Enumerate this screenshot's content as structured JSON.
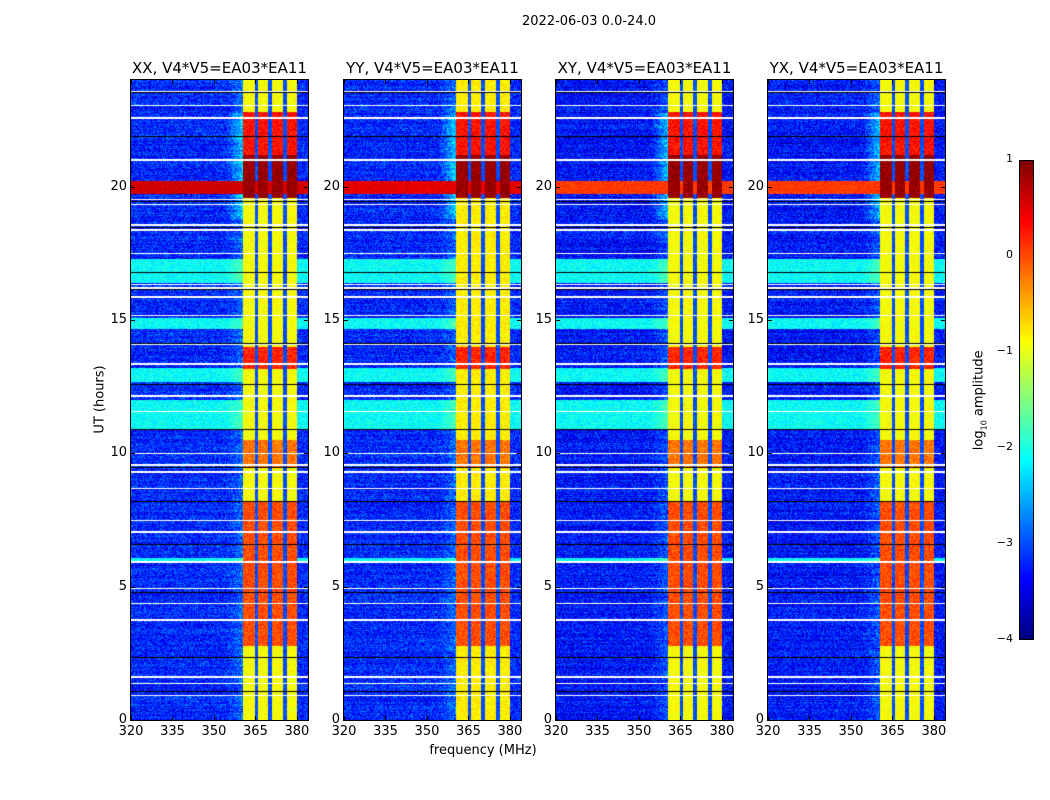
{
  "chart_data": {
    "type": "heatmap",
    "title": "2022-06-03 0.0-24.0",
    "xlabel": "frequency (MHz)",
    "ylabel": "UT (hours)",
    "xlim": [
      320,
      384
    ],
    "ylim": [
      0,
      24
    ],
    "xticks": [
      320,
      335,
      350,
      365,
      380
    ],
    "yticks": [
      0,
      5,
      10,
      15,
      20
    ],
    "colormap": "jet",
    "colorbar": {
      "label_prefix": "log",
      "label_sub": "10",
      "label_suffix": " amplitude",
      "range": [
        -4,
        1
      ],
      "ticks": [
        "1",
        "0",
        "−1",
        "−2",
        "−3",
        "−4"
      ],
      "tick_values": [
        1,
        0,
        -1,
        -2,
        -3,
        -4
      ]
    },
    "panels": [
      {
        "title": "XX, V4*V5=EA03*EA11",
        "background_level": -3.2,
        "band_level": -0.9,
        "rfi_20h_level": 0.6
      },
      {
        "title": "YY, V4*V5=EA03*EA11",
        "background_level": -3.2,
        "band_level": -0.8,
        "rfi_20h_level": 0.5
      },
      {
        "title": "XY, V4*V5=EA03*EA11",
        "background_level": -3.3,
        "band_level": -0.9,
        "rfi_20h_level": 0.1
      },
      {
        "title": "YX, V4*V5=EA03*EA11",
        "background_level": -3.3,
        "band_level": -0.9,
        "rfi_20h_level": 0.1
      }
    ],
    "bright_channels_mhz": [
      [
        360.4,
        364.7
      ],
      [
        365.8,
        369.4
      ],
      [
        370.9,
        374.9
      ],
      [
        376.3,
        379.9
      ]
    ],
    "elevated_hours": [
      [
        19.6,
        21.2,
        0.9
      ],
      [
        21.2,
        22.8,
        0.3
      ],
      [
        13.2,
        14.0,
        0.2
      ],
      [
        2.8,
        8.2,
        0.0
      ],
      [
        9.5,
        10.5,
        -0.2
      ]
    ],
    "cyan_rows_hours": [
      [
        16.4,
        17.3
      ],
      [
        10.9,
        12.0
      ],
      [
        12.7,
        13.2
      ],
      [
        14.7,
        15.1
      ],
      [
        5.9,
        6.1
      ]
    ],
    "flagged_hours": [
      0.95,
      1.1,
      1.4,
      1.65,
      2.35,
      3.8,
      4.4,
      4.8,
      4.95,
      5.95,
      6.6,
      7.1,
      7.5,
      8.2,
      8.7,
      9.35,
      9.5,
      9.6,
      10.0,
      10.9,
      11.6,
      12.2,
      12.6,
      13.4,
      14.1,
      14.15,
      15.2,
      15.9,
      16.15,
      16.25,
      16.35,
      16.8,
      17.5,
      18.4,
      18.5,
      18.6,
      19.35,
      19.45,
      19.55,
      21.05,
      21.9,
      22.6,
      23.05,
      23.55,
      23.6
    ]
  }
}
